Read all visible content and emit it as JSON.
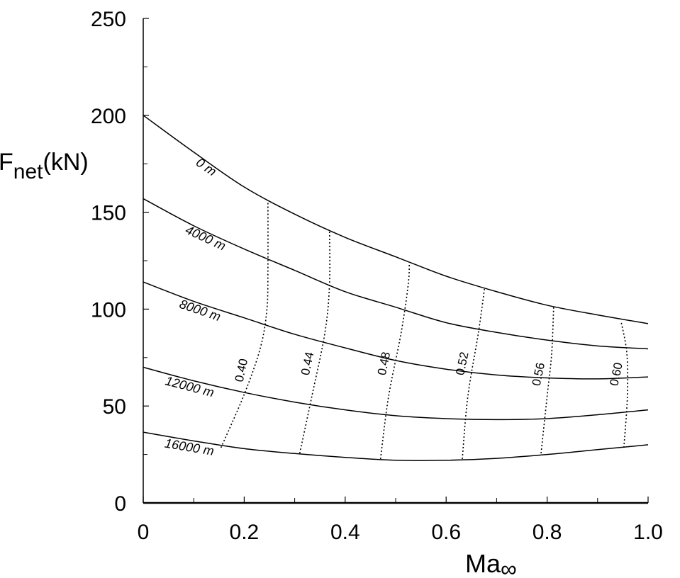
{
  "chart_data": {
    "type": "line",
    "y_label": {
      "main": "F",
      "sub": "net",
      "unit": "(kN)"
    },
    "x_label": {
      "main": "Ma",
      "sub": "∞"
    },
    "x": [
      0,
      0.1,
      0.2,
      0.3,
      0.4,
      0.5,
      0.6,
      0.7,
      0.8,
      0.9,
      1.0
    ],
    "series": [
      {
        "name": "0 m",
        "color": "#000000",
        "values": [
          200,
          181,
          163,
          149,
          137,
          127,
          117,
          109,
          102,
          97,
          92.5
        ]
      },
      {
        "name": "4000 m",
        "color": "#000000",
        "values": [
          157,
          143,
          131,
          120,
          109,
          101,
          93,
          88,
          84,
          81,
          79.5
        ]
      },
      {
        "name": "8000 m",
        "color": "#000000",
        "values": [
          114,
          104,
          95.5,
          87,
          80,
          73.5,
          69,
          66,
          64.5,
          64,
          65
        ]
      },
      {
        "name": "12000 m",
        "color": "#000000",
        "values": [
          70,
          63,
          57,
          52,
          48,
          45,
          43.5,
          43,
          43.5,
          45.5,
          48
        ]
      },
      {
        "name": "16000 m",
        "color": "#000000",
        "values": [
          36.5,
          32,
          28,
          25.5,
          23.5,
          22,
          22,
          23,
          25,
          27.5,
          30
        ]
      }
    ],
    "contours": [
      {
        "name": "0.40",
        "x": [
          0.154,
          0.2,
          0.232,
          0.245,
          0.247,
          0.247
        ],
        "y": [
          28.5,
          56,
          80,
          100,
          122,
          155
        ]
      },
      {
        "name": "0.44",
        "x": [
          0.31,
          0.334,
          0.36,
          0.369,
          0.369
        ],
        "y": [
          25.6,
          55,
          88,
          113,
          140
        ]
      },
      {
        "name": "0.48",
        "x": [
          0.47,
          0.486,
          0.511,
          0.525,
          0.527
        ],
        "y": [
          22.7,
          55,
          88,
          113,
          123.5
        ]
      },
      {
        "name": "0.52",
        "x": [
          0.632,
          0.643,
          0.664,
          0.676
        ],
        "y": [
          22.7,
          55,
          88,
          110.7
        ]
      },
      {
        "name": "0.56",
        "x": [
          0.788,
          0.8,
          0.809,
          0.813
        ],
        "y": [
          25.6,
          55,
          77,
          101.6
        ]
      },
      {
        "name": "0.60",
        "x": [
          0.952,
          0.959,
          0.958,
          0.947
        ],
        "y": [
          28.5,
          55,
          77,
          93
        ]
      }
    ],
    "xlim": [
      0,
      1.0
    ],
    "ylim": [
      0,
      250
    ],
    "xticks": [
      0,
      0.2,
      0.4,
      0.6,
      0.8,
      {
        "value": 1.0,
        "label": "1.0"
      }
    ],
    "yticks": [
      0,
      50,
      100,
      150,
      200,
      250
    ],
    "xminorticks": [
      0.1,
      0.3,
      0.5,
      0.7,
      0.9
    ],
    "yminorticks": [
      25,
      75,
      125,
      175,
      225
    ]
  }
}
